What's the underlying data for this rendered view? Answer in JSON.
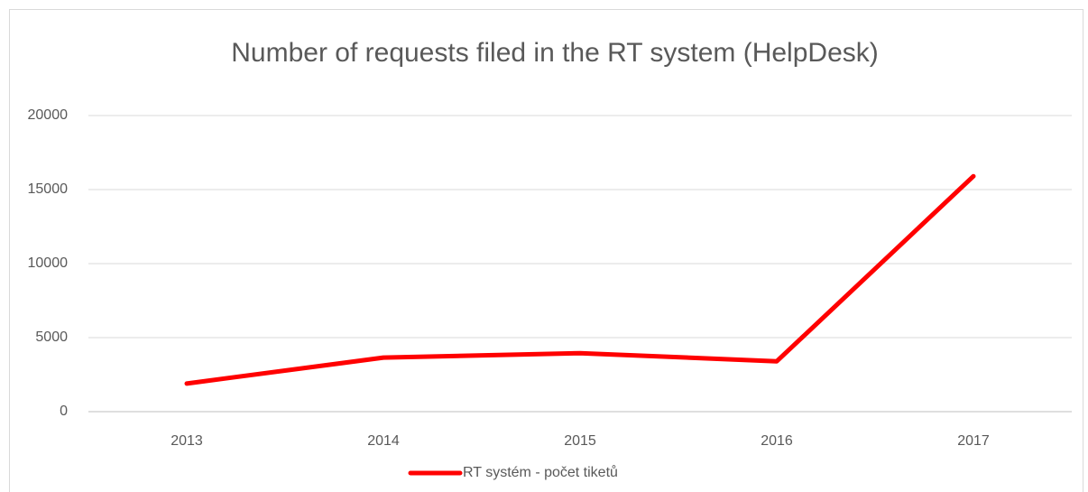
{
  "chart_data": {
    "type": "line",
    "title": "Number of requests filed in the RT system (HelpDesk)",
    "categories": [
      "2013",
      "2014",
      "2015",
      "2016",
      "2017"
    ],
    "series": [
      {
        "name": "RT systém - počet tiketů",
        "color": "#ff0000",
        "values": [
          1900,
          3650,
          3950,
          3400,
          15900
        ]
      }
    ],
    "ylim": [
      0,
      20000
    ],
    "yticks": [
      0,
      5000,
      10000,
      15000,
      20000
    ],
    "grid": true,
    "legend": "bottom"
  }
}
